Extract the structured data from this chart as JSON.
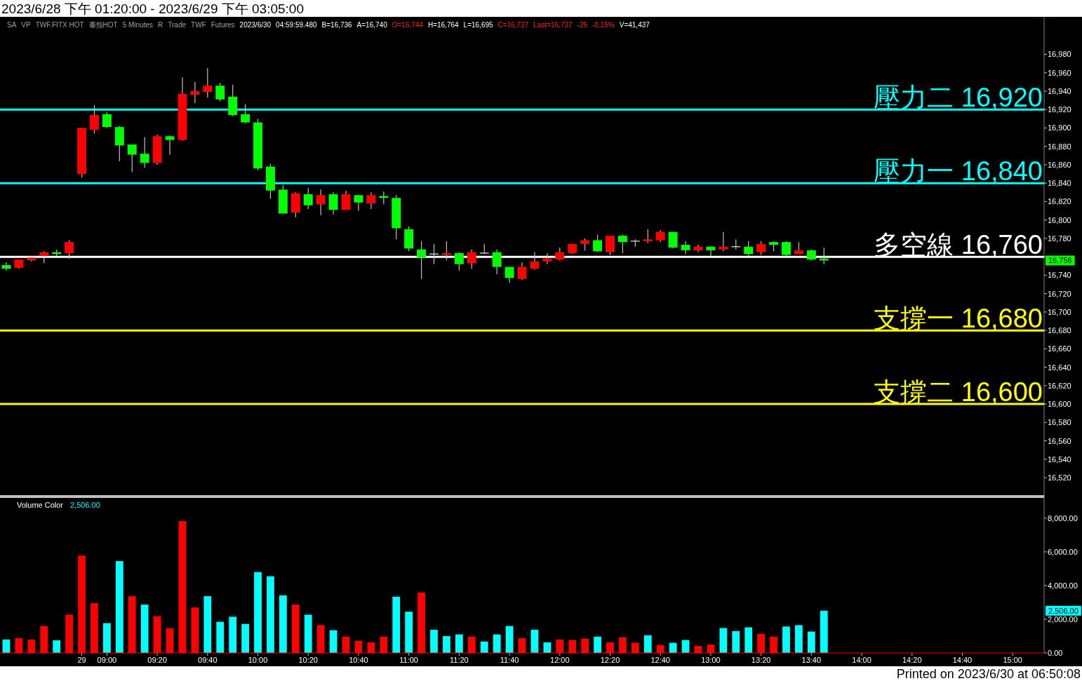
{
  "chart_data": [
    {
      "type": "candlestick",
      "title": "2023/6/28 下午 01:20:00 - 2023/6/29 下午 03:05:00",
      "categories": [
        null,
        null,
        null,
        null,
        null,
        null,
        null,
        null,
        null,
        null,
        null,
        null,
        null,
        null,
        null,
        null,
        null,
        null,
        null,
        null,
        null,
        null,
        null,
        null,
        null,
        null,
        null,
        null,
        null,
        null,
        null,
        null,
        null,
        null,
        null,
        null,
        null,
        null,
        null,
        null,
        null,
        null,
        null,
        null,
        null,
        null,
        null,
        null,
        null,
        null,
        null,
        null,
        null,
        null,
        null,
        null,
        null,
        null,
        null,
        null,
        null,
        null,
        null,
        null,
        null,
        null,
        null,
        null,
        null,
        null,
        null,
        null,
        null,
        null,
        null,
        null,
        null,
        null,
        null,
        null,
        null,
        null,
        null
      ],
      "ohlc": [
        [
          16751,
          16754,
          16745,
          16747
        ],
        [
          16748,
          16757,
          16747,
          16757
        ],
        [
          16756,
          16760,
          16755,
          16759
        ],
        [
          16761,
          16766,
          16753,
          16765
        ],
        [
          16765,
          16768,
          16761,
          16763
        ],
        [
          16764,
          16778,
          16758,
          16776
        ],
        [
          16850,
          16900,
          16846,
          16900
        ],
        [
          16898,
          16925,
          16894,
          16914
        ],
        [
          16915,
          16917,
          16900,
          16901
        ],
        [
          16901,
          16902,
          16864,
          16881
        ],
        [
          16882,
          16882,
          16852,
          16871
        ],
        [
          16872,
          16890,
          16857,
          16862
        ],
        [
          16862,
          16893,
          16860,
          16891
        ],
        [
          16891,
          16892,
          16871,
          16887
        ],
        [
          16887,
          16955,
          16886,
          16937
        ],
        [
          16936,
          16950,
          16927,
          16940
        ],
        [
          16939,
          16965,
          16933,
          16946
        ],
        [
          16946,
          16949,
          16929,
          16931
        ],
        [
          16934,
          16947,
          16913,
          16914
        ],
        [
          16915,
          16926,
          16905,
          16906
        ],
        [
          16906,
          16910,
          16854,
          16856
        ],
        [
          16858,
          16861,
          16823,
          16832
        ],
        [
          16833,
          16838,
          16807,
          16807
        ],
        [
          16808,
          16830,
          16803,
          16829
        ],
        [
          16828,
          16835,
          16812,
          16816
        ],
        [
          16817,
          16833,
          16805,
          16827
        ],
        [
          16828,
          16830,
          16806,
          16811
        ],
        [
          16811,
          16832,
          16811,
          16828
        ],
        [
          16827,
          16827,
          16810,
          16819
        ],
        [
          16818,
          16830,
          16812,
          16827
        ],
        [
          16826,
          16831,
          16817,
          16824
        ],
        [
          16824,
          16827,
          16779,
          16791
        ],
        [
          16790,
          16793,
          16766,
          16769
        ],
        [
          16768,
          16777,
          16736,
          16759
        ],
        [
          16763,
          16774,
          16752,
          16763
        ],
        [
          16762,
          16777,
          16756,
          16764
        ],
        [
          16764,
          16765,
          16745,
          16752
        ],
        [
          16753,
          16768,
          16747,
          16765
        ],
        [
          16764,
          16774,
          16763,
          16764
        ],
        [
          16765,
          16768,
          16741,
          16749
        ],
        [
          16749,
          16749,
          16732,
          16737
        ],
        [
          16736,
          16754,
          16735,
          16749
        ],
        [
          16747,
          16765,
          16746,
          16755
        ],
        [
          16755,
          16764,
          16752,
          16758
        ],
        [
          16757,
          16770,
          16756,
          16765
        ],
        [
          16764,
          16774,
          16763,
          16774
        ],
        [
          16774,
          16780,
          16767,
          16778
        ],
        [
          16778,
          16784,
          16765,
          16766
        ],
        [
          16765,
          16783,
          16762,
          16783
        ],
        [
          16783,
          16784,
          16764,
          16776
        ],
        [
          16777,
          16779,
          16771,
          16777
        ],
        [
          16777,
          16790,
          16775,
          16779
        ],
        [
          16778,
          16789,
          16776,
          16787
        ],
        [
          16787,
          16787,
          16769,
          16770
        ],
        [
          16773,
          16777,
          16763,
          16767
        ],
        [
          16767,
          16773,
          16765,
          16771
        ],
        [
          16771,
          16771,
          16761,
          16767
        ],
        [
          16768,
          16787,
          16766,
          16771
        ],
        [
          16771,
          16779,
          16768,
          16771
        ],
        [
          16771,
          16777,
          16761,
          16763
        ],
        [
          16765,
          16777,
          16762,
          16774
        ],
        [
          16776,
          16777,
          16766,
          16773
        ],
        [
          16776,
          16777,
          16761,
          16762
        ],
        [
          16763,
          16776,
          16763,
          16767
        ],
        [
          16767,
          16768,
          16756,
          16757
        ],
        [
          16758,
          16770,
          16752,
          16756
        ],
        null,
        null,
        null,
        null,
        null,
        null,
        null,
        null,
        null,
        null,
        null,
        null,
        null,
        null,
        null,
        null,
        null
      ],
      "colors": [
        "#00ff00",
        "#ff0000",
        "#ff0000",
        "#ff0000",
        "#00ff00",
        "#ff0000",
        "#ff0000",
        "#ff0000",
        "#00ff00",
        "#00ff00",
        "#00ff00",
        "#00ff00",
        "#ff0000",
        "#00ff00",
        "#ff0000",
        "#ff0000",
        "#ff0000",
        "#00ff00",
        "#00ff00",
        "#00ff00",
        "#00ff00",
        "#00ff00",
        "#00ff00",
        "#ff0000",
        "#00ff00",
        "#ff0000",
        "#00ff00",
        "#ff0000",
        "#00ff00",
        "#ff0000",
        "#00ff00",
        "#00ff00",
        "#00ff00",
        "#00ff00",
        "#c0c0c0",
        "#ff0000",
        "#00ff00",
        "#ff0000",
        "#c0c0c0",
        "#00ff00",
        "#00ff00",
        "#ff0000",
        "#ff0000",
        "#ff0000",
        "#ff0000",
        "#ff0000",
        "#ff0000",
        "#00ff00",
        "#ff0000",
        "#00ff00",
        "#c0c0c0",
        "#ff0000",
        "#ff0000",
        "#00ff00",
        "#00ff00",
        "#ff0000",
        "#00ff00",
        "#ff0000",
        "#c0c0c0",
        "#00ff00",
        "#ff0000",
        "#00ff00",
        "#00ff00",
        "#ff0000",
        "#00ff00",
        "#00ff00",
        null,
        null,
        null,
        null,
        null,
        null,
        null,
        null,
        null,
        null,
        null,
        null,
        null,
        null,
        null,
        null,
        null
      ],
      "ylim": [
        16501,
        17020
      ],
      "yticks": [
        {
          "value": 16520,
          "label": "16,520"
        },
        {
          "value": 16540,
          "label": "16,540"
        },
        {
          "value": 16560,
          "label": "16,560"
        },
        {
          "value": 16580,
          "label": "16,580"
        },
        {
          "value": 16600,
          "label": "16,600"
        },
        {
          "value": 16620,
          "label": "16,620"
        },
        {
          "value": 16640,
          "label": "16,640"
        },
        {
          "value": 16660,
          "label": "16,660"
        },
        {
          "value": 16680,
          "label": "16,680"
        },
        {
          "value": 16700,
          "label": "16,700"
        },
        {
          "value": 16720,
          "label": "16,720"
        },
        {
          "value": 16740,
          "label": "16,740"
        },
        {
          "value": 16760,
          "label": null
        },
        {
          "value": 16780,
          "label": "16,780"
        },
        {
          "value": 16800,
          "label": "16,800"
        },
        {
          "value": 16820,
          "label": "16,820"
        },
        {
          "value": 16840,
          "label": "16,840"
        },
        {
          "value": 16860,
          "label": "16,860"
        },
        {
          "value": 16880,
          "label": "16,880"
        },
        {
          "value": 16900,
          "label": "16,900"
        },
        {
          "value": 16920,
          "label": "16,920"
        },
        {
          "value": 16940,
          "label": "16,940"
        },
        {
          "value": 16960,
          "label": "16,960"
        },
        {
          "value": 16980,
          "label": "16,980"
        }
      ],
      "ref_lines": [
        {
          "axis": "y",
          "value": 16920,
          "label": "壓力二 16,920",
          "color": "#00ffff"
        },
        {
          "axis": "y",
          "value": 16840,
          "label": "壓力一 16,840",
          "color": "#00ffff"
        },
        {
          "axis": "y",
          "value": 16760,
          "label": "多空線 16,760",
          "color": "#ffffff"
        },
        {
          "axis": "y",
          "value": 16680,
          "label": "支撐一 16,680",
          "color": "#ffff00"
        },
        {
          "axis": "y",
          "value": 16600,
          "label": "支撐二 16,600",
          "color": "#ffff00"
        }
      ],
      "annotations": [
        "SA",
        "VP",
        "TWF.FITX HOT",
        "臺指HOT",
        "5 Minutes",
        "R",
        "Trade",
        "TWF",
        "Futures",
        "2023/6/30",
        "04:59:59.480",
        "B=16,736",
        "A=16,740",
        "O=16,744",
        "H=16,764",
        "L=16,695",
        "C=16,737",
        "Last=16,737",
        "-25",
        "-0.15%",
        "V=41,437",
        "16,756"
      ]
    },
    {
      "type": "bar",
      "title": "Volume Color",
      "categories": [
        null,
        null,
        null,
        null,
        null,
        null,
        "29",
        null,
        "09:00",
        null,
        null,
        null,
        "09:20",
        null,
        null,
        null,
        "09:40",
        null,
        null,
        null,
        "10:00",
        null,
        null,
        null,
        "10:20",
        null,
        null,
        null,
        "10:40",
        null,
        null,
        null,
        "11:00",
        null,
        null,
        null,
        "11:20",
        null,
        null,
        null,
        "11:40",
        null,
        null,
        null,
        "12:00",
        null,
        null,
        null,
        "12:20",
        null,
        null,
        null,
        "12:40",
        null,
        null,
        null,
        "13:00",
        null,
        null,
        null,
        "13:20",
        null,
        null,
        null,
        "13:40",
        null,
        null,
        null,
        "14:00",
        null,
        null,
        null,
        "14:20",
        null,
        null,
        null,
        "14:40",
        null,
        null,
        null,
        "15:00",
        null,
        null
      ],
      "values": [
        800,
        880,
        800,
        1600,
        750,
        2270,
        5780,
        2950,
        1770,
        5450,
        3370,
        2870,
        2180,
        1470,
        7830,
        2700,
        3370,
        1850,
        2150,
        1720,
        4800,
        4550,
        3420,
        2870,
        2270,
        1650,
        1350,
        970,
        720,
        630,
        970,
        3340,
        2450,
        3590,
        1380,
        1000,
        1100,
        970,
        680,
        1100,
        1600,
        880,
        1380,
        630,
        800,
        770,
        850,
        970,
        630,
        930,
        600,
        1050,
        470,
        600,
        770,
        420,
        500,
        1480,
        1300,
        1520,
        1130,
        970,
        1570,
        1650,
        1270,
        2506,
        null,
        null,
        null,
        null,
        null,
        null,
        null,
        null,
        null,
        null,
        null,
        null,
        null,
        null,
        null,
        null,
        null
      ],
      "colors": [
        "#00ffff",
        "#ff0000",
        "#ff0000",
        "#ff0000",
        "#00ffff",
        "#ff0000",
        "#ff0000",
        "#ff0000",
        "#00ffff",
        "#00ffff",
        "#ff0000",
        "#00ffff",
        "#ff0000",
        "#ff0000",
        "#ff0000",
        "#ff0000",
        "#00ffff",
        "#00ffff",
        "#00ffff",
        "#00ffff",
        "#00ffff",
        "#00ffff",
        "#00ffff",
        "#ff0000",
        "#00ffff",
        "#ff0000",
        "#00ffff",
        "#ff0000",
        "#ff0000",
        "#ff0000",
        "#ff0000",
        "#00ffff",
        "#00ffff",
        "#ff0000",
        "#00ffff",
        "#00ffff",
        "#00ffff",
        "#ff0000",
        "#00ffff",
        "#00ffff",
        "#00ffff",
        "#ff0000",
        "#00ffff",
        "#00ffff",
        "#ff0000",
        "#ff0000",
        "#ff0000",
        "#00ffff",
        "#ff0000",
        "#ff0000",
        "#ff0000",
        "#00ffff",
        "#ff0000",
        "#00ffff",
        "#00ffff",
        "#ff0000",
        "#ff0000",
        "#00ffff",
        "#00ffff",
        "#00ffff",
        "#ff0000",
        "#ff0000",
        "#00ffff",
        "#00ffff",
        "#00ffff",
        "#00ffff",
        null,
        null,
        null,
        null,
        null,
        null,
        null,
        null,
        null,
        null,
        null,
        null,
        null,
        null,
        null,
        null,
        null
      ],
      "ylim": [
        0,
        9200
      ],
      "yticks": [
        {
          "value": 0,
          "label": "0.00"
        },
        {
          "value": 2000,
          "label": "2,000.00"
        },
        {
          "value": 4000,
          "label": "4,000.00"
        },
        {
          "value": 6000,
          "label": "6,000.00"
        },
        {
          "value": 8000,
          "label": "8,000.00"
        }
      ],
      "annotations": [
        "2,506.00",
        "2,506.00",
        "Printed on 2023/6/30 at 06:50:08"
      ]
    }
  ]
}
